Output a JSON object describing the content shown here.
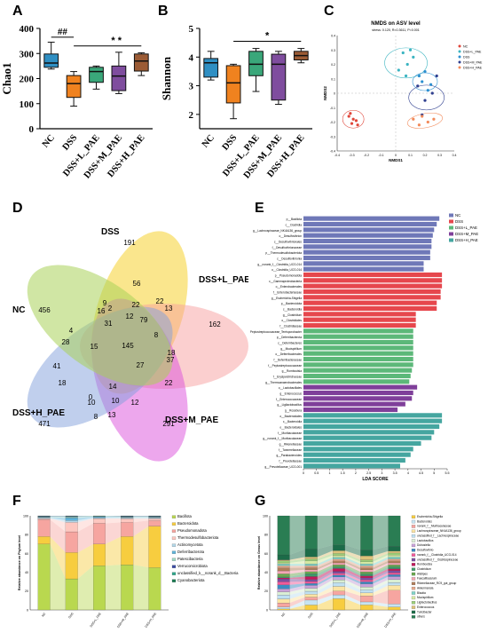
{
  "panel_labels": {
    "A": "A",
    "B": "B",
    "C": "C",
    "D": "D",
    "E": "E",
    "F": "F",
    "G": "G"
  },
  "groups": [
    "NC",
    "DSS",
    "DSS+L_PAE",
    "DSS+M_PAE",
    "DSS+H_PAE"
  ],
  "colors": {
    "NC": "#2f8fc3",
    "DSS": "#f0821f",
    "DSS+L_PAE": "#3aa77a",
    "DSS+M_PAE": "#7f4d9e",
    "DSS+H_PAE": "#9b5b35"
  },
  "chart_data": [
    {
      "id": "A",
      "type": "box",
      "ylabel": "Chao1",
      "ylim": [
        0,
        400
      ],
      "yticks": [
        0,
        100,
        200,
        300,
        400
      ],
      "categories": [
        "NC",
        "DSS",
        "DSS+L_PAE",
        "DSS+M_PAE",
        "DSS+H_PAE"
      ],
      "boxes": [
        {
          "min": 238,
          "q1": 245,
          "median": 262,
          "q3": 298,
          "max": 345
        },
        {
          "min": 90,
          "q1": 125,
          "median": 180,
          "q3": 212,
          "max": 228
        },
        {
          "min": 158,
          "q1": 185,
          "median": 228,
          "q3": 245,
          "max": 250
        },
        {
          "min": 140,
          "q1": 152,
          "median": 210,
          "q3": 250,
          "max": 305
        },
        {
          "min": 212,
          "q1": 230,
          "median": 270,
          "q3": 298,
          "max": 303
        }
      ],
      "annotations": [
        {
          "text": "##"
        },
        {
          "text": "* *"
        }
      ]
    },
    {
      "id": "B",
      "type": "box",
      "ylabel": "Shannon",
      "ylim": [
        1.5,
        5
      ],
      "yticks": [
        2,
        3,
        4,
        5
      ],
      "categories": [
        "NC",
        "DSS",
        "DSS+L_PAE",
        "DSS+M_PAE",
        "DSS+H_PAE"
      ],
      "boxes": [
        {
          "min": 3.2,
          "q1": 3.3,
          "median": 3.8,
          "q3": 3.95,
          "max": 4.2
        },
        {
          "min": 1.85,
          "q1": 2.4,
          "median": 3.1,
          "q3": 3.7,
          "max": 3.75
        },
        {
          "min": 2.8,
          "q1": 3.35,
          "median": 3.75,
          "q3": 4.2,
          "max": 4.3
        },
        {
          "min": 2.35,
          "q1": 2.5,
          "median": 3.75,
          "q3": 4.1,
          "max": 4.2
        },
        {
          "min": 3.8,
          "q1": 3.9,
          "median": 4.05,
          "q3": 4.2,
          "max": 4.3
        }
      ],
      "annotations": [
        {
          "text": "*"
        }
      ]
    },
    {
      "id": "C",
      "type": "scatter",
      "title": "NMDS on ASV level",
      "subtitle": "stress: 0.120, R=0.3611, P=0.001",
      "xlabel": "NMDS1",
      "ylabel": "NMDS2",
      "xlim": [
        -0.4,
        0.4
      ],
      "ylim": [
        -0.4,
        0.4
      ],
      "xticks": [
        "-0.4",
        "-0.3",
        "-0.2",
        "-0.1",
        "0",
        "0.1",
        "0.2",
        "0.3",
        "0.4"
      ],
      "yticks": [
        "0.4",
        "0.3",
        "0.2",
        "0.1",
        "0",
        "-0.1",
        "-0.2",
        "-0.3",
        "-0.4"
      ],
      "legend": [
        "NC",
        "DSS+L_PAE",
        "DSS",
        "DSS+M_PAE",
        "DSS+H_PAE"
      ],
      "series": [
        {
          "name": "NC",
          "points": [
            [
              -0.31,
              -0.14
            ],
            [
              -0.29,
              -0.18
            ],
            [
              -0.3,
              -0.21
            ],
            [
              -0.27,
              -0.19
            ],
            [
              -0.26,
              -0.22
            ],
            [
              -0.32,
              -0.16
            ]
          ]
        },
        {
          "name": "DSS+L_PAE",
          "points": [
            [
              0.05,
              0.28
            ],
            [
              0.08,
              0.2
            ],
            [
              0.12,
              0.25
            ],
            [
              0.02,
              0.16
            ],
            [
              0.07,
              0.12
            ],
            [
              0.1,
              0.3
            ]
          ]
        },
        {
          "name": "DSS",
          "points": [
            [
              0.18,
              0.08
            ],
            [
              0.22,
              0.02
            ],
            [
              0.16,
              0.12
            ],
            [
              0.24,
              0.06
            ],
            [
              0.2,
              0.15
            ]
          ]
        },
        {
          "name": "DSS+M_PAE",
          "points": [
            [
              0.15,
              0.05
            ],
            [
              0.2,
              -0.05
            ],
            [
              0.25,
              0.0
            ],
            [
              0.18,
              -0.15
            ],
            [
              0.28,
              0.12
            ]
          ]
        },
        {
          "name": "DSS+H_PAE",
          "points": [
            [
              0.12,
              -0.18
            ],
            [
              0.18,
              -0.16
            ],
            [
              0.22,
              -0.2
            ],
            [
              0.16,
              -0.22
            ],
            [
              0.26,
              -0.18
            ]
          ]
        }
      ]
    },
    {
      "id": "D",
      "type": "venn",
      "sets": [
        "NC",
        "DSS",
        "DSS+L_PAE",
        "DSS+M_PAE",
        "DSS+H_PAE"
      ],
      "numbers": [
        "191",
        "456",
        "162",
        "291",
        "471",
        "9",
        "2",
        "22",
        "22",
        "56",
        "12",
        "31",
        "16",
        "79",
        "13",
        "8",
        "4",
        "28",
        "18",
        "15",
        "145",
        "27",
        "37",
        "22",
        "41",
        "18",
        "14",
        "12",
        "0",
        "10",
        "13",
        "8",
        "10"
      ]
    },
    {
      "id": "E",
      "type": "bar",
      "orientation": "horizontal",
      "xlabel": "LDA SCORE",
      "xlim": [
        0,
        5.5
      ],
      "xticks": [
        "0",
        "0.5",
        "1",
        "1.5",
        "2",
        "2.5",
        "3",
        "3.5",
        "4",
        "4.5",
        "5",
        "5.5"
      ],
      "legend": [
        "NC",
        "DSS",
        "DSS+L_PAE",
        "DSS+M_PAE",
        "DSS+H_PAE"
      ],
      "bars": [
        {
          "label": "p__Bacillota",
          "group": "NC",
          "value": 5.2
        },
        {
          "label": "c__Clostridia",
          "group": "NC",
          "value": 5.1
        },
        {
          "label": "g__Lachnospiraceae_NK4A136_group",
          "group": "NC",
          "value": 5.0
        },
        {
          "label": "o__Desulfovibrion",
          "group": "NC",
          "value": 4.95
        },
        {
          "label": "c__Desulfovibrionales",
          "group": "NC",
          "value": 4.9
        },
        {
          "label": "f__Desulfovibrionaceae",
          "group": "NC",
          "value": 4.9
        },
        {
          "label": "p__Thermodesulfobacteriota",
          "group": "NC",
          "value": 4.85
        },
        {
          "label": "c__Desulfovibrionia",
          "group": "NC",
          "value": 4.85
        },
        {
          "label": "g__norank_f__Clostridia_UCG-014",
          "group": "NC",
          "value": 4.6
        },
        {
          "label": "o__Clostridia_UCG-014",
          "group": "NC",
          "value": 4.6
        },
        {
          "label": "p__Pseudomonadota",
          "group": "DSS",
          "value": 5.3
        },
        {
          "label": "c__Gammaproteobacteria",
          "group": "DSS",
          "value": 5.3
        },
        {
          "label": "o__Enterobacterales",
          "group": "DSS",
          "value": 5.3
        },
        {
          "label": "f__Enterobacteriaceae",
          "group": "DSS",
          "value": 5.25
        },
        {
          "label": "g__Escherichia-Shigella",
          "group": "DSS",
          "value": 5.25
        },
        {
          "label": "p__Bacteroidota",
          "group": "DSS",
          "value": 5.1
        },
        {
          "label": "c__Bacteroidia",
          "group": "DSS",
          "value": 5.1
        },
        {
          "label": "g__Clostridium",
          "group": "DSS",
          "value": 4.3
        },
        {
          "label": "o__Clostridiales",
          "group": "DSS",
          "value": 4.3
        },
        {
          "label": "f__Clostridiaceae",
          "group": "DSS",
          "value": 4.3
        },
        {
          "label": "g__Peptostreptococcaceae_Terrisporobacter",
          "group": "DSS+L_PAE",
          "value": 4.2
        },
        {
          "label": "p__Deferribacterota",
          "group": "DSS+L_PAE",
          "value": 4.2
        },
        {
          "label": "c__Deferribacteres",
          "group": "DSS+L_PAE",
          "value": 4.2
        },
        {
          "label": "g__Mucispirillum",
          "group": "DSS+L_PAE",
          "value": 4.2
        },
        {
          "label": "o__Deferribacterales",
          "group": "DSS+L_PAE",
          "value": 4.2
        },
        {
          "label": "f__Deferribacteraceae",
          "group": "DSS+L_PAE",
          "value": 4.2
        },
        {
          "label": "f__Peptostreptococcaceae",
          "group": "DSS+L_PAE",
          "value": 4.2
        },
        {
          "label": "g__Romboutsia",
          "group": "DSS+L_PAE",
          "value": 4.15
        },
        {
          "label": "f__Erysipelotrichaceae",
          "group": "DSS+L_PAE",
          "value": 4.1
        },
        {
          "label": "g__Thermoanaerobacterales",
          "group": "DSS+L_PAE",
          "value": 4.05
        },
        {
          "label": "o__Lactobacillales",
          "group": "DSS+M_PAE",
          "value": 4.35
        },
        {
          "label": "g__Enterococcus",
          "group": "DSS+M_PAE",
          "value": 4.2
        },
        {
          "label": "f__Enterococcaceae",
          "group": "DSS+M_PAE",
          "value": 4.15
        },
        {
          "label": "g__Ligilactobacillus",
          "group": "DSS+M_PAE",
          "value": 3.9
        },
        {
          "label": "g__Rosebura",
          "group": "DSS+M_PAE",
          "value": 3.6
        },
        {
          "label": "o__Bacteroidales",
          "group": "DSS+H_PAE",
          "value": 5.3
        },
        {
          "label": "c__Bacteroidia",
          "group": "DSS+H_PAE",
          "value": 5.3
        },
        {
          "label": "o__Bacteroidales",
          "group": "DSS+H_PAE",
          "value": 5.2
        },
        {
          "label": "f__Muribaculaceae",
          "group": "DSS+H_PAE",
          "value": 5.0
        },
        {
          "label": "g__norank_f__Muribaculaceae",
          "group": "DSS+H_PAE",
          "value": 4.9
        },
        {
          "label": "g__Rikenellaceae",
          "group": "DSS+H_PAE",
          "value": 4.5
        },
        {
          "label": "f__Tannerellaceae",
          "group": "DSS+H_PAE",
          "value": 4.2
        },
        {
          "label": "g__Parabacteroides",
          "group": "DSS+H_PAE",
          "value": 4.1
        },
        {
          "label": "f__Prevotellaceae",
          "group": "DSS+H_PAE",
          "value": 3.9
        },
        {
          "label": "g__Prevotellaceae_UCG-001",
          "group": "DSS+H_PAE",
          "value": 3.7
        }
      ]
    },
    {
      "id": "F",
      "type": "stacked-bar",
      "ylabel": "Relative abundance on Phylum level",
      "ylim": [
        0,
        100
      ],
      "yticks": [
        "0",
        "20",
        "40",
        "60",
        "80",
        "100"
      ],
      "categories": [
        "NC",
        "DSS",
        "DSS+L_PAE",
        "DSS+M_PAE",
        "DSS+H_PAE"
      ],
      "series": [
        {
          "name": "Bacillota",
          "color": "#b9d84f",
          "values": [
            70,
            33,
            47,
            48,
            45
          ]
        },
        {
          "name": "Bacteroidota",
          "color": "#f7cd3f",
          "values": [
            8,
            28,
            23,
            30,
            44
          ]
        },
        {
          "name": "Pseudomonadota",
          "color": "#f6a5a0",
          "values": [
            18,
            22,
            22,
            15,
            6
          ]
        },
        {
          "name": "Thermodesulfobacteriota",
          "color": "#fdc7c0",
          "values": [
            1,
            10,
            5,
            4,
            2
          ]
        },
        {
          "name": "Actinomycetota",
          "color": "#b3d7e8",
          "values": [
            1,
            2,
            1,
            1,
            1
          ]
        },
        {
          "name": "Deferribacterota",
          "color": "#5fb3d9",
          "values": [
            0.5,
            3,
            1,
            0.5,
            0.5
          ]
        },
        {
          "name": "Patescibacteria",
          "color": "#9fd8c4",
          "values": [
            0.5,
            1,
            0.5,
            0.5,
            0.5
          ]
        },
        {
          "name": "Verrucomicrobiota",
          "color": "#3b4aa2",
          "values": [
            0.5,
            0.5,
            0.2,
            0.5,
            0.5
          ]
        },
        {
          "name": "unclassified_k__norank_d__Bacteria",
          "color": "#2ea58a",
          "values": [
            0.3,
            0.3,
            0.2,
            0.3,
            0.3
          ]
        },
        {
          "name": "Cyanobacteriota",
          "color": "#1a7a52",
          "values": [
            0.2,
            0.2,
            0.1,
            0.2,
            0.2
          ]
        }
      ]
    },
    {
      "id": "G",
      "type": "stacked-bar",
      "ylabel": "Relative abundance on Genus level",
      "ylim": [
        0,
        100
      ],
      "yticks": [
        "0",
        "20",
        "40",
        "60",
        "80",
        "100"
      ],
      "categories": [
        "NC",
        "DSS",
        "DSS+L_PAE",
        "DSS+M_PAE",
        "DSS+H_PAE"
      ],
      "series": [
        {
          "name": "Escherichia-Shigella",
          "color": "#f7cd3f",
          "values": [
            1,
            5,
            12,
            5,
            3
          ]
        },
        {
          "name": "Bacteroides",
          "color": "#c6e4f2",
          "values": [
            2,
            5,
            4,
            3,
            3
          ]
        },
        {
          "name": "norank_f__Muribaculaceae",
          "color": "#f6a5a0",
          "values": [
            4,
            3,
            4,
            6,
            14
          ]
        },
        {
          "name": "Lachnospiraceae_NK4A136_group",
          "color": "#fbe4a3",
          "values": [
            4,
            3,
            5,
            3,
            5
          ]
        },
        {
          "name": "unclassified_f__Lachnospiraceae",
          "color": "#bfe0f2",
          "values": [
            4,
            3,
            4,
            3,
            3
          ]
        },
        {
          "name": "Lactobacillus",
          "color": "#d9eed3",
          "values": [
            3,
            3,
            3,
            3,
            3
          ]
        },
        {
          "name": "Dubosiella",
          "color": "#c8a2d8",
          "values": [
            3,
            3,
            3,
            3,
            3
          ]
        },
        {
          "name": "Desulfovibrio",
          "color": "#3b8bc2",
          "values": [
            4,
            2,
            2,
            2,
            2
          ]
        },
        {
          "name": "norank_f__Clostridia_UCG-014",
          "color": "#f15a9a",
          "values": [
            3,
            2,
            2,
            2,
            2
          ]
        },
        {
          "name": "unclassified_f__Oscillospiraceae",
          "color": "#7a4fa0",
          "values": [
            3,
            2,
            2,
            2,
            2
          ]
        },
        {
          "name": "Romboutsia",
          "color": "#c2185b",
          "values": [
            1,
            3,
            3,
            2,
            2
          ]
        },
        {
          "name": "Clostridium",
          "color": "#3d9a6b",
          "values": [
            1,
            3,
            2,
            2,
            2
          ]
        },
        {
          "name": "Alistipes",
          "color": "#6aa84f",
          "values": [
            3,
            2,
            2,
            2,
            2
          ]
        },
        {
          "name": "Faecalibaculum",
          "color": "#f4a6b4",
          "values": [
            3,
            2,
            2,
            2,
            2
          ]
        },
        {
          "name": "Rikenellaceae_RC9_gut_group",
          "color": "#b07e5a",
          "values": [
            3,
            2,
            2,
            2,
            2
          ]
        },
        {
          "name": "Akkermansia",
          "color": "#e6a88c",
          "values": [
            2,
            2,
            2,
            2,
            2
          ]
        },
        {
          "name": "Blautia",
          "color": "#7fd4c9",
          "values": [
            2,
            2,
            2,
            2,
            2
          ]
        },
        {
          "name": "Mucispirillum",
          "color": "#d6e9a3",
          "values": [
            1,
            3,
            2,
            2,
            2
          ]
        },
        {
          "name": "Ligilactobacillus",
          "color": "#9ccf78",
          "values": [
            2,
            2,
            2,
            2,
            2
          ]
        },
        {
          "name": "Enterococcus",
          "color": "#dcc27a",
          "values": [
            1,
            2,
            3,
            4,
            2
          ]
        },
        {
          "name": "Turicibacter",
          "color": "#1c6b48",
          "values": [
            5,
            8,
            6,
            6,
            5
          ]
        },
        {
          "name": "others",
          "color": "#2a7d53",
          "values": [
            39,
            34,
            31,
            34,
            31
          ]
        }
      ]
    }
  ],
  "venn_labels": {
    "NC": "NC",
    "DSS": "DSS",
    "DSS+L_PAE": "DSS+L_PAE",
    "DSS+M_PAE": "DSS+M_PAE",
    "DSS+H_PAE": "DSS+H_PAE"
  }
}
